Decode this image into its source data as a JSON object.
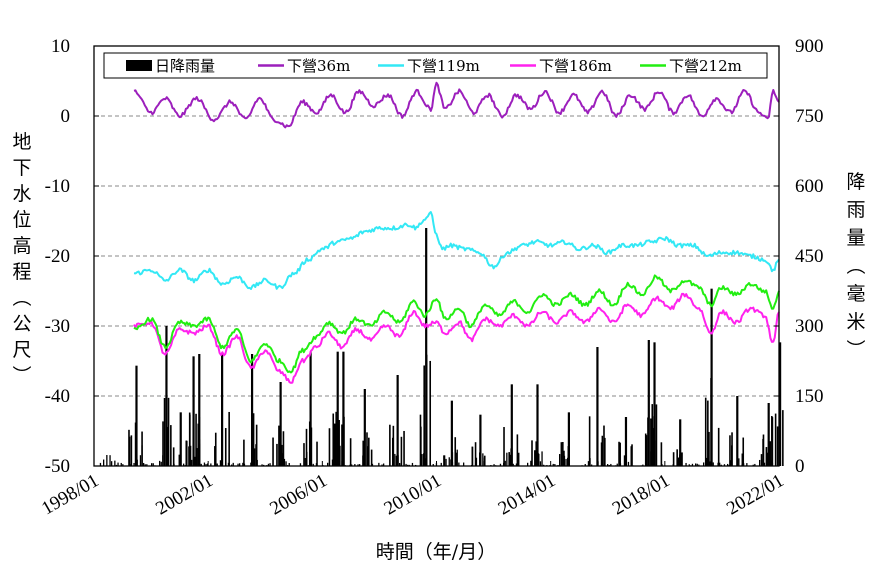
{
  "chart_data": {
    "type": "line",
    "xlabel": "時間（年/月）",
    "ylabel_left": "地下水位高程（公尺）",
    "ylabel_right": "降雨量（毫米）",
    "x_ticks": [
      "1998/01",
      "2002/01",
      "2006/01",
      "2010/01",
      "2014/01",
      "2018/01",
      "2022/01"
    ],
    "x_range": [
      1998.0,
      2022.0
    ],
    "y_left_range": [
      -50,
      10
    ],
    "y_left_ticks": [
      "-50",
      "-40",
      "-30",
      "-20",
      "-10",
      "0",
      "10"
    ],
    "y_right_range": [
      0,
      900
    ],
    "y_right_ticks": [
      "0",
      "150",
      "300",
      "450",
      "600",
      "750",
      "900"
    ],
    "grid": "horizontal dashed",
    "legend_position": "top",
    "rainfall": {
      "name": "日降雨量",
      "color": "#000000",
      "peaks": [
        {
          "x": 1999.45,
          "y": 215
        },
        {
          "x": 2000.5,
          "y": 300
        },
        {
          "x": 2001.0,
          "y": 115
        },
        {
          "x": 2001.45,
          "y": 235
        },
        {
          "x": 2001.65,
          "y": 240
        },
        {
          "x": 2002.45,
          "y": 240
        },
        {
          "x": 2003.5,
          "y": 240
        },
        {
          "x": 2004.5,
          "y": 180
        },
        {
          "x": 2005.55,
          "y": 245
        },
        {
          "x": 2006.5,
          "y": 245
        },
        {
          "x": 2006.7,
          "y": 245
        },
        {
          "x": 2007.45,
          "y": 165
        },
        {
          "x": 2008.6,
          "y": 195
        },
        {
          "x": 2009.6,
          "y": 510
        },
        {
          "x": 2010.5,
          "y": 140
        },
        {
          "x": 2011.5,
          "y": 110
        },
        {
          "x": 2012.6,
          "y": 175
        },
        {
          "x": 2013.5,
          "y": 175
        },
        {
          "x": 2014.6,
          "y": 115
        },
        {
          "x": 2015.6,
          "y": 255
        },
        {
          "x": 2016.6,
          "y": 105
        },
        {
          "x": 2017.4,
          "y": 270
        },
        {
          "x": 2017.6,
          "y": 265
        },
        {
          "x": 2018.5,
          "y": 100
        },
        {
          "x": 2019.6,
          "y": 380
        },
        {
          "x": 2020.5,
          "y": 150
        },
        {
          "x": 2021.6,
          "y": 135
        },
        {
          "x": 2022.0,
          "y": 265
        }
      ]
    },
    "series": [
      {
        "name": "下營36m",
        "color": "#9c1fbc",
        "points": [
          [
            1999.4,
            3.5
          ],
          [
            2000.0,
            0.5
          ],
          [
            2000.5,
            2.5
          ],
          [
            2001.0,
            0.0
          ],
          [
            2001.6,
            2.5
          ],
          [
            2002.2,
            -0.5
          ],
          [
            2002.8,
            2.0
          ],
          [
            2003.3,
            -0.5
          ],
          [
            2003.8,
            2.5
          ],
          [
            2004.3,
            -0.5
          ],
          [
            2004.8,
            -1.5
          ],
          [
            2005.3,
            2.0
          ],
          [
            2005.8,
            0.5
          ],
          [
            2006.3,
            3.0
          ],
          [
            2006.8,
            0.5
          ],
          [
            2007.3,
            3.5
          ],
          [
            2007.8,
            1.5
          ],
          [
            2008.3,
            3.0
          ],
          [
            2008.8,
            0.0
          ],
          [
            2009.3,
            3.5
          ],
          [
            2009.8,
            1.0
          ],
          [
            2010.0,
            4.5
          ],
          [
            2010.3,
            1.0
          ],
          [
            2010.8,
            3.5
          ],
          [
            2011.3,
            0.5
          ],
          [
            2011.8,
            3.0
          ],
          [
            2012.3,
            0.0
          ],
          [
            2012.8,
            3.0
          ],
          [
            2013.3,
            1.0
          ],
          [
            2013.8,
            3.5
          ],
          [
            2014.3,
            0.5
          ],
          [
            2014.8,
            3.0
          ],
          [
            2015.3,
            0.5
          ],
          [
            2015.8,
            3.5
          ],
          [
            2016.3,
            0.0
          ],
          [
            2016.8,
            3.0
          ],
          [
            2017.3,
            1.0
          ],
          [
            2017.8,
            3.5
          ],
          [
            2018.3,
            0.5
          ],
          [
            2018.8,
            3.0
          ],
          [
            2019.3,
            0.0
          ],
          [
            2019.8,
            2.5
          ],
          [
            2020.3,
            0.5
          ],
          [
            2020.8,
            3.5
          ],
          [
            2021.3,
            0.5
          ],
          [
            2021.6,
            -0.5
          ],
          [
            2021.8,
            3.5
          ],
          [
            2022.0,
            2.0
          ]
        ]
      },
      {
        "name": "下營119m",
        "color": "#33e8f5",
        "points": [
          [
            1999.4,
            -22.5
          ],
          [
            2000.0,
            -22.0
          ],
          [
            2000.5,
            -23.5
          ],
          [
            2001.0,
            -22.0
          ],
          [
            2001.5,
            -23.5
          ],
          [
            2002.0,
            -22.0
          ],
          [
            2002.5,
            -24.0
          ],
          [
            2003.0,
            -23.0
          ],
          [
            2003.5,
            -24.5
          ],
          [
            2004.0,
            -23.5
          ],
          [
            2004.5,
            -24.5
          ],
          [
            2005.0,
            -22.5
          ],
          [
            2005.5,
            -20.5
          ],
          [
            2006.0,
            -19.0
          ],
          [
            2006.5,
            -18.0
          ],
          [
            2007.0,
            -17.5
          ],
          [
            2007.5,
            -16.5
          ],
          [
            2008.0,
            -16.0
          ],
          [
            2008.5,
            -16.0
          ],
          [
            2009.0,
            -15.5
          ],
          [
            2009.3,
            -16.0
          ],
          [
            2009.5,
            -15.0
          ],
          [
            2009.8,
            -14.0
          ],
          [
            2010.0,
            -17.0
          ],
          [
            2010.2,
            -19.0
          ],
          [
            2010.5,
            -18.5
          ],
          [
            2011.0,
            -19.0
          ],
          [
            2011.5,
            -19.5
          ],
          [
            2012.0,
            -21.5
          ],
          [
            2012.5,
            -19.5
          ],
          [
            2013.0,
            -18.5
          ],
          [
            2013.5,
            -18.0
          ],
          [
            2014.0,
            -18.5
          ],
          [
            2014.5,
            -18.0
          ],
          [
            2015.0,
            -19.0
          ],
          [
            2015.5,
            -18.5
          ],
          [
            2016.0,
            -19.5
          ],
          [
            2016.5,
            -18.5
          ],
          [
            2017.0,
            -18.5
          ],
          [
            2017.5,
            -18.0
          ],
          [
            2018.0,
            -17.5
          ],
          [
            2018.5,
            -18.5
          ],
          [
            2019.0,
            -18.5
          ],
          [
            2019.5,
            -20.0
          ],
          [
            2020.0,
            -19.5
          ],
          [
            2020.5,
            -19.5
          ],
          [
            2021.0,
            -20.0
          ],
          [
            2021.5,
            -20.5
          ],
          [
            2021.8,
            -22.0
          ],
          [
            2022.0,
            -20.5
          ]
        ]
      },
      {
        "name": "下營186m",
        "color": "#ff22ee",
        "points": [
          [
            1999.4,
            -30.0
          ],
          [
            2000.0,
            -29.5
          ],
          [
            2000.5,
            -34.0
          ],
          [
            2001.0,
            -30.5
          ],
          [
            2001.5,
            -31.0
          ],
          [
            2002.0,
            -30.0
          ],
          [
            2002.5,
            -34.0
          ],
          [
            2003.0,
            -31.5
          ],
          [
            2003.5,
            -36.0
          ],
          [
            2004.0,
            -33.5
          ],
          [
            2004.5,
            -36.5
          ],
          [
            2004.9,
            -38.0
          ],
          [
            2005.3,
            -35.0
          ],
          [
            2005.8,
            -33.0
          ],
          [
            2006.2,
            -31.0
          ],
          [
            2006.7,
            -33.0
          ],
          [
            2007.2,
            -30.5
          ],
          [
            2007.7,
            -32.0
          ],
          [
            2008.2,
            -30.0
          ],
          [
            2008.7,
            -31.5
          ],
          [
            2009.2,
            -28.0
          ],
          [
            2009.6,
            -30.0
          ],
          [
            2010.0,
            -29.5
          ],
          [
            2010.3,
            -31.0
          ],
          [
            2010.8,
            -29.5
          ],
          [
            2011.2,
            -32.0
          ],
          [
            2011.7,
            -29.0
          ],
          [
            2012.2,
            -30.0
          ],
          [
            2012.7,
            -28.5
          ],
          [
            2013.2,
            -30.0
          ],
          [
            2013.7,
            -28.0
          ],
          [
            2014.2,
            -29.5
          ],
          [
            2014.7,
            -28.0
          ],
          [
            2015.2,
            -29.5
          ],
          [
            2015.7,
            -27.5
          ],
          [
            2016.2,
            -29.5
          ],
          [
            2016.7,
            -27.0
          ],
          [
            2017.2,
            -28.5
          ],
          [
            2017.7,
            -26.0
          ],
          [
            2018.2,
            -27.5
          ],
          [
            2018.7,
            -25.5
          ],
          [
            2019.2,
            -27.5
          ],
          [
            2019.6,
            -31.0
          ],
          [
            2020.0,
            -28.0
          ],
          [
            2020.5,
            -29.5
          ],
          [
            2021.0,
            -27.5
          ],
          [
            2021.5,
            -28.5
          ],
          [
            2021.8,
            -32.5
          ],
          [
            2022.0,
            -28.0
          ]
        ]
      },
      {
        "name": "下營212m",
        "color": "#22ee11",
        "points": [
          [
            1999.4,
            -30.5
          ],
          [
            2000.0,
            -29.0
          ],
          [
            2000.5,
            -33.0
          ],
          [
            2001.0,
            -29.5
          ],
          [
            2001.5,
            -30.0
          ],
          [
            2002.0,
            -29.0
          ],
          [
            2002.5,
            -33.0
          ],
          [
            2003.0,
            -30.5
          ],
          [
            2003.5,
            -35.0
          ],
          [
            2004.0,
            -32.5
          ],
          [
            2004.5,
            -35.0
          ],
          [
            2004.9,
            -36.5
          ],
          [
            2005.3,
            -33.5
          ],
          [
            2005.8,
            -31.5
          ],
          [
            2006.2,
            -29.5
          ],
          [
            2006.7,
            -31.0
          ],
          [
            2007.2,
            -29.0
          ],
          [
            2007.7,
            -30.0
          ],
          [
            2008.2,
            -28.0
          ],
          [
            2008.7,
            -29.5
          ],
          [
            2009.2,
            -26.5
          ],
          [
            2009.6,
            -28.5
          ],
          [
            2010.0,
            -26.0
          ],
          [
            2010.3,
            -29.0
          ],
          [
            2010.8,
            -27.5
          ],
          [
            2011.2,
            -30.0
          ],
          [
            2011.7,
            -27.0
          ],
          [
            2012.2,
            -28.5
          ],
          [
            2012.7,
            -26.5
          ],
          [
            2013.2,
            -28.0
          ],
          [
            2013.7,
            -25.5
          ],
          [
            2014.2,
            -27.0
          ],
          [
            2014.7,
            -25.5
          ],
          [
            2015.2,
            -27.0
          ],
          [
            2015.7,
            -25.0
          ],
          [
            2016.2,
            -27.0
          ],
          [
            2016.7,
            -24.0
          ],
          [
            2017.2,
            -25.5
          ],
          [
            2017.7,
            -23.0
          ],
          [
            2018.2,
            -25.0
          ],
          [
            2018.7,
            -23.5
          ],
          [
            2019.2,
            -24.5
          ],
          [
            2019.6,
            -27.0
          ],
          [
            2020.0,
            -24.5
          ],
          [
            2020.5,
            -25.5
          ],
          [
            2021.0,
            -24.0
          ],
          [
            2021.5,
            -25.0
          ],
          [
            2021.8,
            -27.5
          ],
          [
            2022.0,
            -25.0
          ]
        ]
      }
    ]
  }
}
